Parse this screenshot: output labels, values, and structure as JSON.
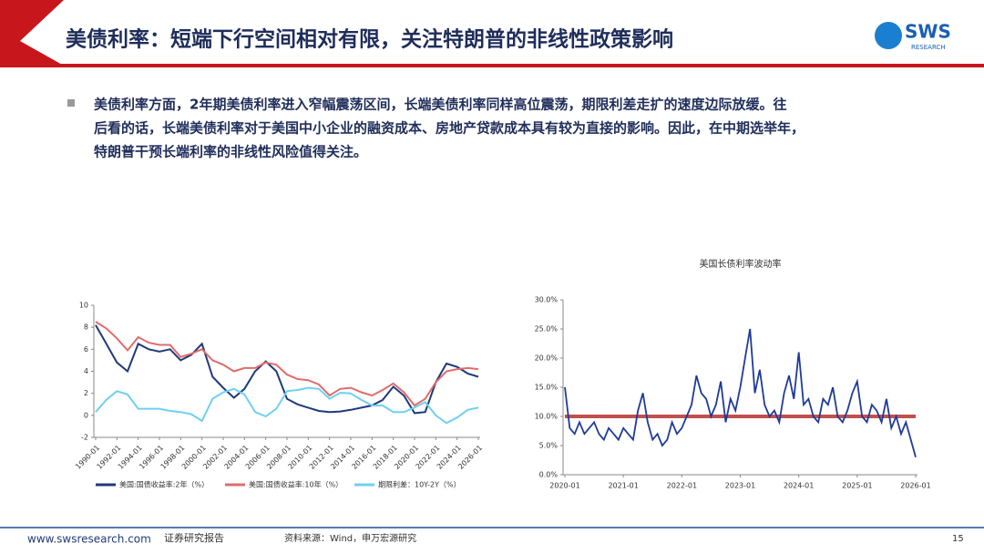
{
  "header": {
    "title": "美债利率：短端下行空间相对有限，关注特朗普的非线性政策影响"
  },
  "logo": {
    "name": "SWS",
    "sub": "RESEARCH"
  },
  "bullet": {
    "lines": [
      "美债利率方面，2年期美债利率进入窄幅震荡区间，长端美债利率同样高位震荡，期限利差走扩的速度边际放缓。往",
      "后看的话，长端美债利率对于美国中小企业的融资成本、房地产贷款成本具有较为直接的影响。因此，在中期选举年，",
      "特朗普干预长端利率的非线性风险值得关注。"
    ]
  },
  "chart_data": [
    {
      "type": "line",
      "categories": [
        "1990-01",
        null,
        "1992-01",
        null,
        "1994-01",
        null,
        "1996-01",
        null,
        "1998-01",
        null,
        "2000-01",
        null,
        "2002-01",
        null,
        "2004-01",
        null,
        "2006-01",
        null,
        "2008-01",
        null,
        "2010-01",
        null,
        "2012-01",
        null,
        "2014-01",
        null,
        "2016-01",
        null,
        "2018-01",
        null,
        "2020-01",
        null,
        "2022-01",
        null,
        "2024-01",
        null,
        "2026-01"
      ],
      "series": [
        {
          "name": "美国:国债收益率:2年（%）",
          "color": "#1f3a7a",
          "values": [
            8.2,
            6.5,
            4.8,
            4.0,
            6.5,
            6.0,
            5.8,
            6.0,
            5.0,
            5.5,
            6.5,
            3.5,
            2.5,
            1.6,
            2.4,
            4.0,
            4.9,
            4.0,
            1.5,
            1.0,
            0.7,
            0.4,
            0.3,
            0.35,
            0.5,
            0.7,
            0.9,
            1.4,
            2.6,
            1.8,
            0.2,
            0.3,
            3.0,
            4.7,
            4.4,
            3.8,
            3.5
          ]
        },
        {
          "name": "美国:国债收益率:10年（%）",
          "color": "#e06c6c",
          "values": [
            8.5,
            7.9,
            7.0,
            5.9,
            7.1,
            6.6,
            6.4,
            6.4,
            5.3,
            5.6,
            6.0,
            5.0,
            4.6,
            4.0,
            4.3,
            4.3,
            4.8,
            4.6,
            3.7,
            3.3,
            3.2,
            2.8,
            1.8,
            2.4,
            2.5,
            2.1,
            1.8,
            2.3,
            2.9,
            2.1,
            0.9,
            1.5,
            3.0,
            4.0,
            4.2,
            4.3,
            4.2
          ]
        },
        {
          "name": "期限利差：10Y-2Y（%）",
          "color": "#6fd0f0",
          "values": [
            0.3,
            1.4,
            2.2,
            1.9,
            0.6,
            0.6,
            0.6,
            0.4,
            0.3,
            0.1,
            -0.5,
            1.5,
            2.1,
            2.4,
            1.9,
            0.3,
            -0.1,
            0.6,
            2.2,
            2.3,
            2.5,
            2.4,
            1.5,
            2.05,
            2.0,
            1.4,
            0.9,
            0.9,
            0.3,
            0.3,
            0.7,
            1.2,
            0,
            -0.7,
            -0.2,
            0.5,
            0.7
          ]
        }
      ],
      "ylim": [
        -2,
        10
      ],
      "yticks": [
        -2,
        0,
        2,
        4,
        6,
        8,
        10
      ]
    },
    {
      "type": "line",
      "title": "美国长债利率波动率",
      "categories": [
        "2020-01",
        null,
        null,
        null,
        null,
        null,
        null,
        null,
        null,
        null,
        null,
        null,
        "2021-01",
        null,
        null,
        null,
        null,
        null,
        null,
        null,
        null,
        null,
        null,
        null,
        "2022-01",
        null,
        null,
        null,
        null,
        null,
        null,
        null,
        null,
        null,
        null,
        null,
        "2023-01",
        null,
        null,
        null,
        null,
        null,
        null,
        null,
        null,
        null,
        null,
        null,
        "2024-01",
        null,
        null,
        null,
        null,
        null,
        null,
        null,
        null,
        null,
        null,
        null,
        "2025-01",
        null,
        null,
        null,
        null,
        null,
        null,
        null,
        null,
        null,
        null,
        null,
        "2026-01"
      ],
      "series": [
        {
          "color": "#1f3a9a",
          "values": [
            15,
            8,
            7,
            9,
            7,
            8,
            9,
            7,
            6,
            8,
            7,
            6,
            8,
            7,
            6,
            11,
            14,
            9,
            6,
            7,
            5,
            6,
            9,
            7,
            8,
            10,
            12,
            17,
            14,
            13,
            10,
            12,
            16,
            9,
            13,
            11,
            15,
            20,
            25,
            14,
            18,
            12,
            10,
            11,
            9,
            14,
            17,
            13,
            21,
            12,
            13,
            10,
            9,
            13,
            12,
            15,
            10,
            9,
            11,
            14,
            16,
            10,
            9,
            12,
            11,
            9,
            13,
            8,
            10,
            7,
            9,
            6,
            3
          ]
        }
      ],
      "reference_value": 10,
      "reference_color": "#c0504d",
      "ylim": [
        0,
        30
      ],
      "yticks": [
        {
          "value": 0,
          "label": "0.0%"
        },
        {
          "value": 5,
          "label": "5.0%"
        },
        {
          "value": 10,
          "label": "10.0%"
        },
        {
          "value": 15,
          "label": "15.0%"
        },
        {
          "value": 20,
          "label": "20.0%"
        },
        {
          "value": 25,
          "label": "25.0%"
        },
        {
          "value": 30,
          "label": "30.0%"
        }
      ]
    }
  ],
  "footer": {
    "site": "www.swsresearch.com",
    "kind": "证券研究报告",
    "source": "资料来源：Wind，申万宏源研究",
    "page": "15"
  }
}
